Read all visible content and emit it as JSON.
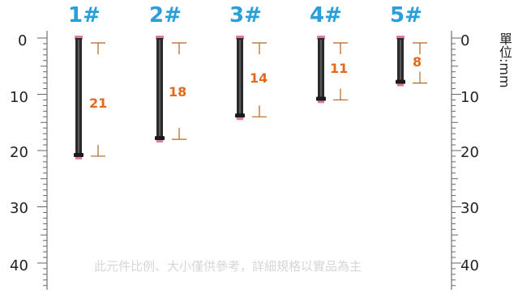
{
  "items": [
    {
      "label": "1#",
      "length": 21
    },
    {
      "label": "2#",
      "length": 18
    },
    {
      "label": "3#",
      "length": 14
    },
    {
      "label": "4#",
      "length": 11
    },
    {
      "label": "5#",
      "length": 8
    }
  ],
  "ruler": {
    "ticks": [
      "0",
      "10",
      "20",
      "30",
      "40"
    ],
    "unit": "單位:mm"
  },
  "disclaimer": "此元件比例、大小僅供參考，詳細規格以實品為主",
  "colors": {
    "label": "#2b9fd9",
    "length_text": "#e2691e",
    "bracket": "#b5651d",
    "screw": "#2a2a2a",
    "screw_head": "#e07aa0"
  }
}
